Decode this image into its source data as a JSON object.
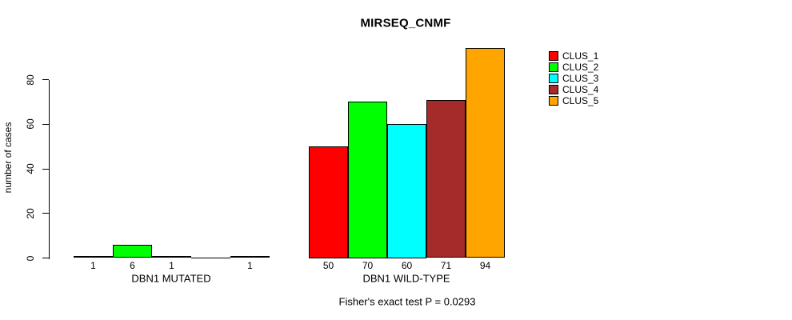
{
  "colors": {
    "background": "#FFFFFF",
    "text": "#000000",
    "bar_outline": "#000000"
  },
  "chart_data": {
    "type": "bar",
    "title": "MIRSEQ_CNMF",
    "ylabel": "number of cases",
    "xlabel": "",
    "yticks": [
      0,
      20,
      40,
      60,
      80
    ],
    "ylim": [
      0,
      97
    ],
    "grid": false,
    "legend_position": "top-right",
    "categories": [
      "DBN1 MUTATED",
      "DBN1 WILD-TYPE"
    ],
    "series": [
      {
        "name": "CLUS_1",
        "color": "#FF0000",
        "values": [
          1,
          50
        ]
      },
      {
        "name": "CLUS_2",
        "color": "#00FF00",
        "values": [
          6,
          70
        ]
      },
      {
        "name": "CLUS_3",
        "color": "#00FFFF",
        "values": [
          1,
          60
        ]
      },
      {
        "name": "CLUS_4",
        "color": "#A52A2A",
        "values": [
          0,
          71
        ]
      },
      {
        "name": "CLUS_5",
        "color": "#FFA500",
        "values": [
          1,
          94
        ]
      }
    ],
    "bar_value_labels": [
      [
        "1",
        "6",
        "1",
        "",
        "1"
      ],
      [
        "50",
        "70",
        "60",
        "71",
        "94"
      ]
    ],
    "annotation": "Fisher's exact test P = 0.0293"
  }
}
